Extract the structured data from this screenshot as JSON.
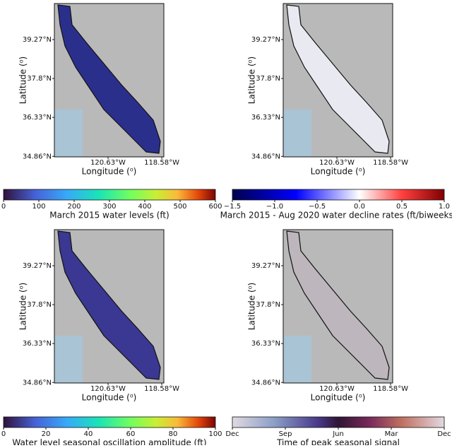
{
  "panels": [
    {
      "xlabel": "Longitude (⁰)",
      "ylabel": "Latitude (⁰)",
      "xlim": [
        -122.68,
        -118.5
      ],
      "ylim": [
        34.84,
        40.63
      ],
      "xticks": [
        {
          "value": -120.63,
          "label": "120.63°W"
        },
        {
          "value": -118.58,
          "label": "118.58°W"
        }
      ],
      "yticks": [
        {
          "value": 39.27,
          "label": "39.27°N"
        },
        {
          "value": 37.8,
          "label": "37.8°N"
        },
        {
          "value": 36.33,
          "label": "36.33°N"
        },
        {
          "value": 34.86,
          "label": "34.86°N"
        }
      ],
      "colorbar": {
        "label": "March 2015 water levels (ft)",
        "lim": [
          0,
          600
        ],
        "ticks": [
          0,
          100,
          200,
          300,
          400,
          500,
          600
        ]
      }
    },
    {
      "xlabel": "Longitude (⁰)",
      "ylabel": "Latitude (⁰)",
      "xlim": [
        -122.68,
        -118.5
      ],
      "ylim": [
        34.84,
        40.63
      ],
      "xticks": [
        {
          "value": -120.63,
          "label": "120.63°W"
        },
        {
          "value": -118.58,
          "label": "118.58°W"
        }
      ],
      "yticks": [
        {
          "value": 39.27,
          "label": "39.27°N"
        },
        {
          "value": 37.8,
          "label": "37.8°N"
        },
        {
          "value": 36.33,
          "label": "36.33°N"
        },
        {
          "value": 34.86,
          "label": "34.86°N"
        }
      ],
      "colorbar": {
        "label": "March 2015 - Aug 2020 water decline rates (ft/biweeks)",
        "lim": [
          -1.5,
          1.0
        ],
        "ticks": [
          {
            "value": -1.5,
            "label": "−1.5"
          },
          {
            "value": -1,
            "label": "−1.0"
          },
          {
            "value": -0.5,
            "label": "−0.5"
          },
          {
            "value": 0,
            "label": "0.0"
          },
          0.5,
          {
            "value": 1,
            "label": "1.0"
          }
        ]
      }
    },
    {
      "xlabel": "Longitude (⁰)",
      "ylabel": "Latitude (⁰)",
      "xlim": [
        -122.68,
        -118.5
      ],
      "ylim": [
        34.84,
        40.63
      ],
      "xticks": [
        {
          "value": -120.63,
          "label": "120.63°W"
        },
        {
          "value": -118.58,
          "label": "118.58°W"
        }
      ],
      "yticks": [
        {
          "value": 39.27,
          "label": "39.27°N"
        },
        {
          "value": 37.8,
          "label": "37.8°N"
        },
        {
          "value": 36.33,
          "label": "36.33°N"
        },
        {
          "value": 34.86,
          "label": "34.86°N"
        }
      ],
      "colorbar": {
        "label": "Water level seasonal oscillation amplitude (ft)",
        "lim": [
          0,
          100
        ],
        "ticks": [
          0,
          20,
          40,
          60,
          80,
          100
        ]
      }
    },
    {
      "xlabel": "Longitude (⁰)",
      "ylabel": "Latitude (⁰)",
      "xlim": [
        -122.68,
        -118.5
      ],
      "ylim": [
        34.84,
        40.63
      ],
      "xticks": [
        {
          "value": -120.63,
          "label": "120.63°W"
        },
        {
          "value": -118.58,
          "label": "118.58°W"
        }
      ],
      "yticks": [
        {
          "value": 39.27,
          "label": "39.27°N"
        },
        {
          "value": 37.8,
          "label": "37.8°N"
        },
        {
          "value": 36.33,
          "label": "36.33°N"
        },
        {
          "value": 34.86,
          "label": "34.86°N"
        }
      ],
      "colorbar": {
        "label": "Time of peak seasonal signal",
        "ticks": [
          "Dec",
          "Sep",
          "Jun",
          "Mar",
          "Dec"
        ]
      }
    }
  ]
}
